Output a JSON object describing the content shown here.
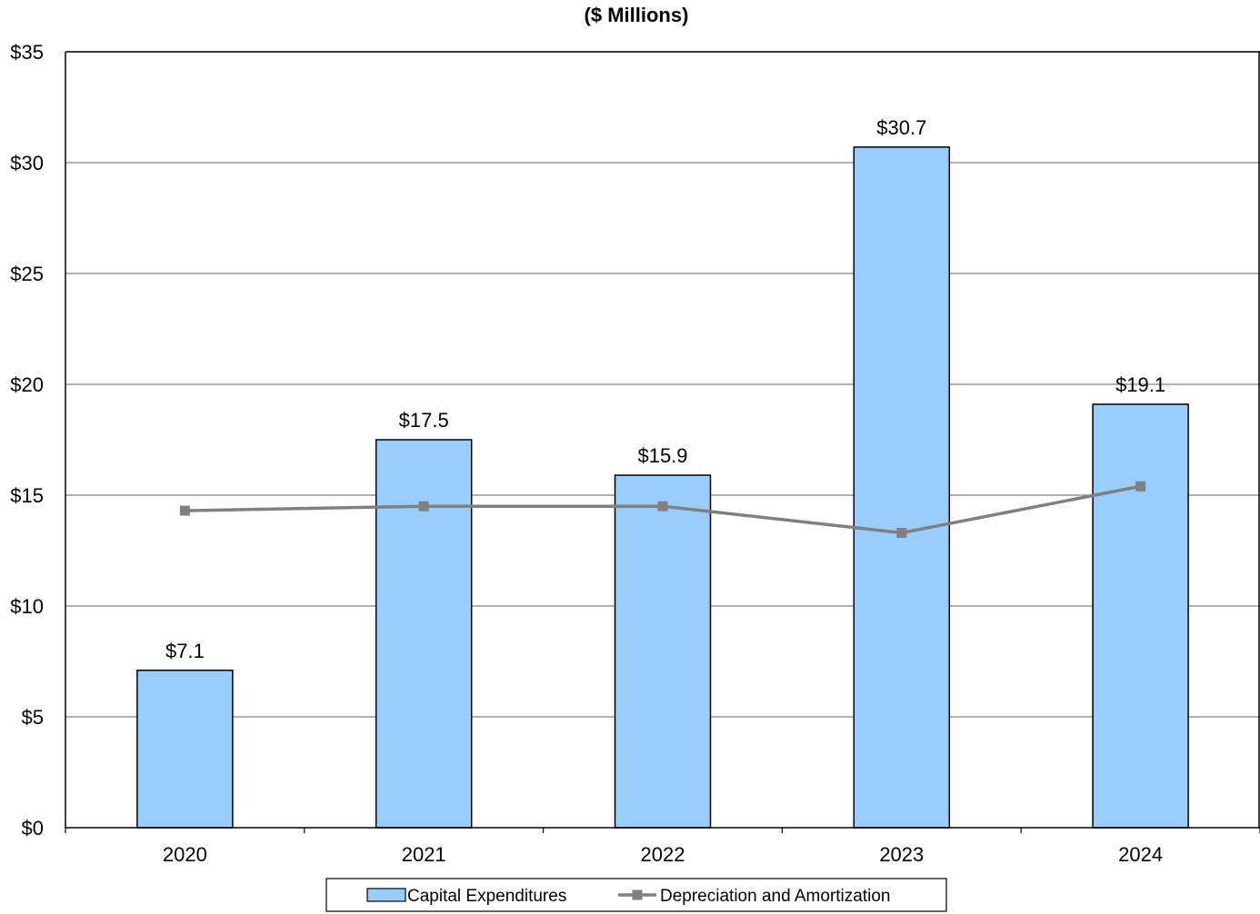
{
  "chart_data": {
    "type": "bar",
    "title": "($ Millions)",
    "categories": [
      "2020",
      "2021",
      "2022",
      "2023",
      "2024"
    ],
    "series": [
      {
        "name": "Capital Expenditures",
        "type": "bar",
        "values": [
          7.1,
          17.5,
          15.9,
          30.7,
          19.1
        ],
        "labels": [
          "$7.1",
          "$17.5",
          "$15.9",
          "$30.7",
          "$19.1"
        ],
        "color": "#99CCFF"
      },
      {
        "name": "Depreciation and Amortization",
        "type": "line",
        "values": [
          14.3,
          14.5,
          14.5,
          13.3,
          15.4
        ],
        "color": "#808080"
      }
    ],
    "y_ticks": [
      0,
      5,
      10,
      15,
      20,
      25,
      30,
      35
    ],
    "y_tick_labels": [
      "$0",
      "$5",
      "$10",
      "$15",
      "$20",
      "$25",
      "$30",
      "$35"
    ],
    "ylim": [
      0,
      35
    ],
    "xlabel": "",
    "ylabel": "",
    "grid": true,
    "legend_position": "bottom"
  }
}
